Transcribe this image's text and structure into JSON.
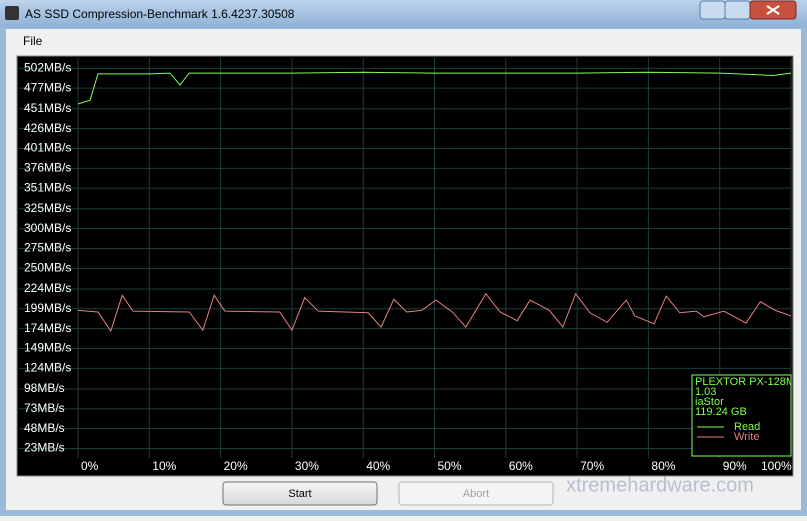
{
  "window": {
    "title": "AS SSD Compression-Benchmark 1.6.4237.30508",
    "menu": [
      "File"
    ],
    "buttons": [
      "Start",
      "Abort"
    ],
    "watermark": "xtremehardware.com"
  },
  "chart_data": {
    "type": "line",
    "xlim": [
      0,
      100
    ],
    "xticks": [
      {
        "value": 0,
        "label": "0%"
      },
      {
        "value": 10,
        "label": "10%"
      },
      {
        "value": 20,
        "label": "20%"
      },
      {
        "value": 30,
        "label": "30%"
      },
      {
        "value": 40,
        "label": "40%"
      },
      {
        "value": 50,
        "label": "50%"
      },
      {
        "value": 60,
        "label": "60%"
      },
      {
        "value": 70,
        "label": "70%"
      },
      {
        "value": 80,
        "label": "80%"
      },
      {
        "value": 90,
        "label": "90%"
      },
      {
        "value": 100,
        "label": "100%"
      }
    ],
    "ylim": [
      11,
      515
    ],
    "yticks": [
      {
        "value": 502,
        "label": "502MB/s"
      },
      {
        "value": 477,
        "label": "477MB/s"
      },
      {
        "value": 451,
        "label": "451MB/s"
      },
      {
        "value": 426,
        "label": "426MB/s"
      },
      {
        "value": 401,
        "label": "401MB/s"
      },
      {
        "value": 376,
        "label": "376MB/s"
      },
      {
        "value": 351,
        "label": "351MB/s"
      },
      {
        "value": 325,
        "label": "325MB/s"
      },
      {
        "value": 300,
        "label": "300MB/s"
      },
      {
        "value": 275,
        "label": "275MB/s"
      },
      {
        "value": 250,
        "label": "250MB/s"
      },
      {
        "value": 224,
        "label": "224MB/s"
      },
      {
        "value": 199,
        "label": "199MB/s"
      },
      {
        "value": 174,
        "label": "174MB/s"
      },
      {
        "value": 149,
        "label": "149MB/s"
      },
      {
        "value": 124,
        "label": "124MB/s"
      },
      {
        "value": 98,
        "label": "98MB/s"
      },
      {
        "value": 73,
        "label": "73MB/s"
      },
      {
        "value": 48,
        "label": "48MB/s"
      },
      {
        "value": 23,
        "label": "23MB/s"
      }
    ],
    "grid": true,
    "legend_info": [
      "PLEXTOR PX-128M",
      "1.03",
      "iaStor",
      "119.24 GB"
    ],
    "series": [
      {
        "name": "Read",
        "color": "#80ff50",
        "x": [
          0,
          1.7,
          2.8,
          10,
          12.9,
          14.3,
          15.6,
          30,
          40,
          50,
          60,
          70,
          80,
          90,
          95,
          97.5,
          100
        ],
        "values": [
          457,
          462,
          495,
          495,
          496,
          481,
          496,
          496,
          497,
          496,
          496,
          496,
          497,
          496,
          494,
          493,
          496
        ]
      },
      {
        "name": "Write",
        "color": "#e88080",
        "x": [
          0,
          2.8,
          4.6,
          6.2,
          7.7,
          15.6,
          17.5,
          19.1,
          20.6,
          28.3,
          30.0,
          31.8,
          33.7,
          40.7,
          42.5,
          44.3,
          46.1,
          48.2,
          50.2,
          52.5,
          54.4,
          57.2,
          59.2,
          61.6,
          63.4,
          66.1,
          68.0,
          69.8,
          71.8,
          74.2,
          76.9,
          78.1,
          80.8,
          82.5,
          84.4,
          86.7,
          87.8,
          90.6,
          93.7,
          95.7,
          97.8,
          100
        ],
        "values": [
          197,
          195,
          171,
          216,
          196,
          195,
          172,
          216,
          196,
          195,
          172,
          213,
          196,
          194,
          176,
          211,
          195,
          197,
          210,
          195,
          176,
          218,
          195,
          184,
          210,
          197,
          176,
          218,
          194,
          182,
          210,
          190,
          180,
          215,
          194,
          196,
          189,
          196,
          181,
          208,
          197,
          190
        ]
      }
    ]
  }
}
